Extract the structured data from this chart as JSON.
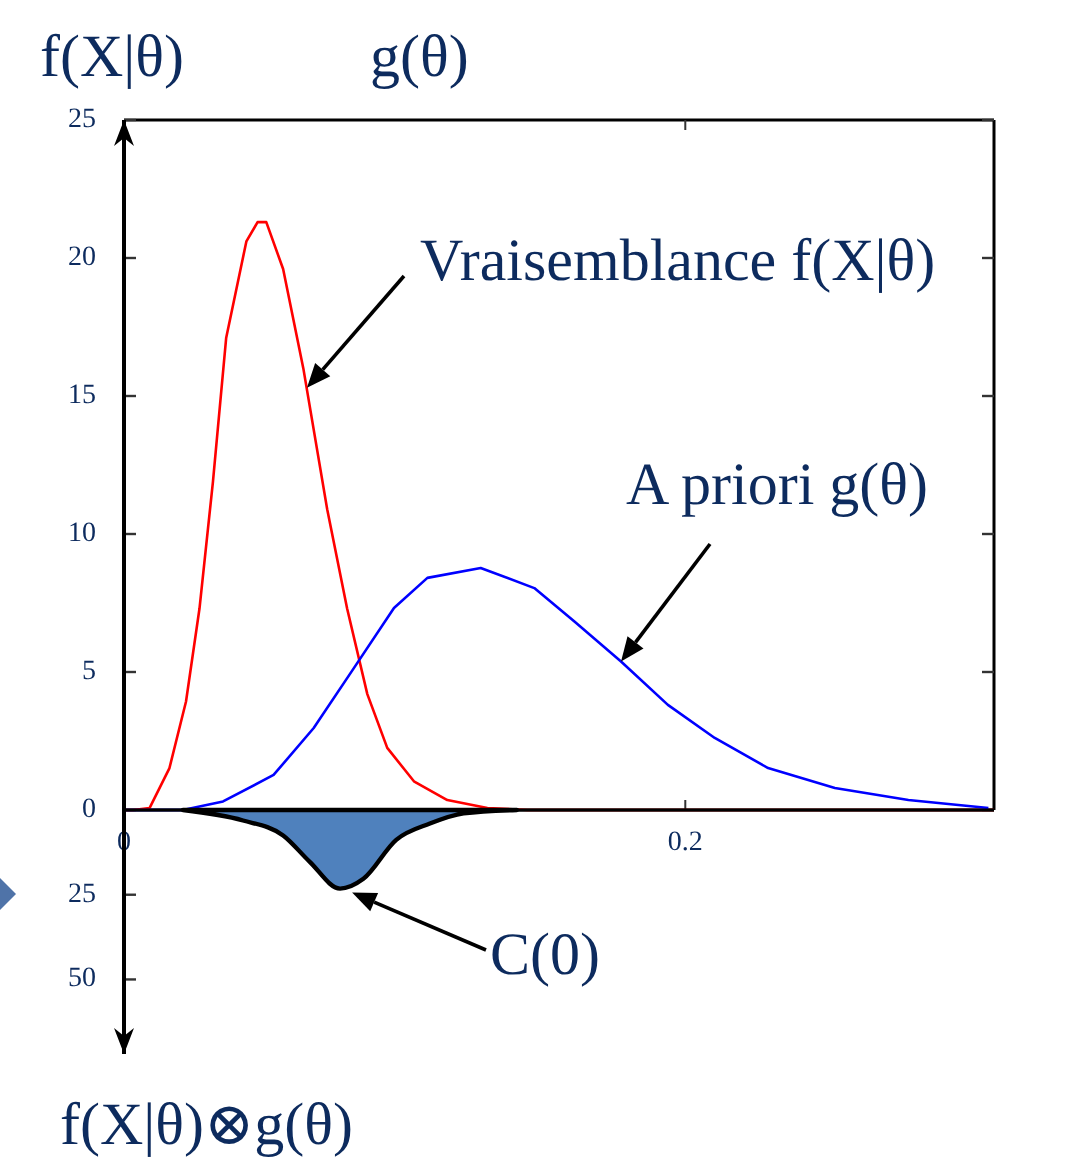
{
  "chart_data": [
    {
      "type": "line",
      "ylabel": "f(X|θ)",
      "annotations": [
        "g(θ)",
        {
          "text": "Vraisemblance f(X|θ)",
          "x": 0.0652,
          "y": 15.3
        },
        {
          "text": "A priori g(θ)",
          "x": 0.1771,
          "y": 5.38
        }
      ],
      "xlim": [
        0,
        0.31
      ],
      "xticks": [
        0,
        0.2
      ],
      "ylim": [
        0,
        25
      ],
      "yticks": [
        0,
        5,
        10,
        15,
        20,
        25
      ],
      "grid": false,
      "series": [
        {
          "color": "#ff0000",
          "x": [
            0,
            0.0033,
            0.0091,
            0.0162,
            0.0221,
            0.0269,
            0.0317,
            0.0364,
            0.0436,
            0.0476,
            0.0507,
            0.0567,
            0.0639,
            0.0724,
            0.0795,
            0.0867,
            0.0938,
            0.1033,
            0.1152,
            0.1295,
            0.1438,
            0.31
          ],
          "values": [
            0,
            0,
            0.07,
            1.52,
            3.93,
            7.3,
            11.9,
            17.1,
            20.6,
            21.3,
            21.3,
            19.6,
            16.0,
            10.9,
            7.3,
            4.2,
            2.25,
            1.04,
            0.36,
            0.07,
            0,
            0
          ]
        },
        {
          "color": "#0000ff",
          "x": [
            0,
            0.021,
            0.0353,
            0.0533,
            0.0676,
            0.0819,
            0.0962,
            0.1081,
            0.1271,
            0.1462,
            0.1605,
            0.1771,
            0.1938,
            0.2105,
            0.2295,
            0.2533,
            0.2795,
            0.308
          ],
          "values": [
            0,
            0,
            0.31,
            1.27,
            2.97,
            5.14,
            7.32,
            8.41,
            8.77,
            8.04,
            6.83,
            5.38,
            3.81,
            2.61,
            1.52,
            0.8,
            0.36,
            0.07
          ]
        }
      ]
    },
    {
      "type": "area",
      "ylabel": "f(X|θ)⊗g(θ)",
      "annotations": [
        "C(0)"
      ],
      "xlim": [
        0,
        0.31
      ],
      "ylim": [
        72,
        0
      ],
      "yticks": [
        25,
        50
      ],
      "tick_labels": "y",
      "series": [
        {
          "color": "#4f81bd",
          "x": [
            0.021,
            0.0424,
            0.0567,
            0.0662,
            0.077,
            0.0853,
            0.097,
            0.109,
            0.121,
            0.14
          ],
          "values": [
            0,
            3.1,
            7.5,
            15.3,
            23.2,
            20.3,
            8.8,
            4.0,
            1.0,
            0
          ]
        }
      ]
    }
  ]
}
